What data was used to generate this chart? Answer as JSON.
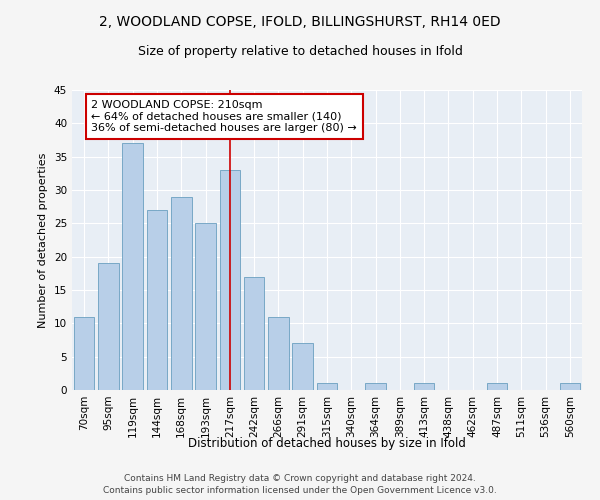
{
  "title1": "2, WOODLAND COPSE, IFOLD, BILLINGSHURST, RH14 0ED",
  "title2": "Size of property relative to detached houses in Ifold",
  "xlabel": "Distribution of detached houses by size in Ifold",
  "ylabel": "Number of detached properties",
  "categories": [
    "70sqm",
    "95sqm",
    "119sqm",
    "144sqm",
    "168sqm",
    "193sqm",
    "217sqm",
    "242sqm",
    "266sqm",
    "291sqm",
    "315sqm",
    "340sqm",
    "364sqm",
    "389sqm",
    "413sqm",
    "438sqm",
    "462sqm",
    "487sqm",
    "511sqm",
    "536sqm",
    "560sqm"
  ],
  "values": [
    11,
    19,
    37,
    27,
    29,
    25,
    33,
    17,
    11,
    7,
    1,
    0,
    1,
    0,
    1,
    0,
    0,
    1,
    0,
    0,
    1
  ],
  "bar_color": "#b8cfe8",
  "bar_edgecolor": "#6a9fc0",
  "redline_x": 6,
  "redline_color": "#cc0000",
  "annotation_text": "2 WOODLAND COPSE: 210sqm\n← 64% of detached houses are smaller (140)\n36% of semi-detached houses are larger (80) →",
  "annotation_box_facecolor": "#ffffff",
  "annotation_box_edgecolor": "#cc0000",
  "ylim": [
    0,
    45
  ],
  "yticks": [
    0,
    5,
    10,
    15,
    20,
    25,
    30,
    35,
    40,
    45
  ],
  "footer": "Contains HM Land Registry data © Crown copyright and database right 2024.\nContains public sector information licensed under the Open Government Licence v3.0.",
  "fig_bg_color": "#f5f5f5",
  "plot_bg_color": "#e8eef5",
  "grid_color": "#ffffff",
  "title1_fontsize": 10,
  "title2_fontsize": 9,
  "xlabel_fontsize": 8.5,
  "ylabel_fontsize": 8,
  "tick_fontsize": 7.5,
  "annotation_fontsize": 8,
  "footer_fontsize": 6.5
}
